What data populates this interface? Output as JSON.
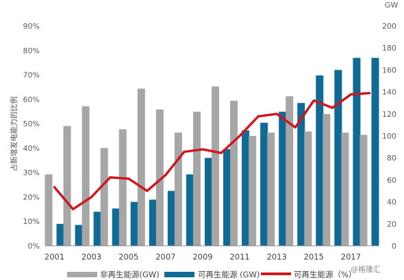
{
  "chart_data": {
    "type": "bar",
    "categories": [
      "2001",
      "2002",
      "2003",
      "2004",
      "2005",
      "2006",
      "2007",
      "2008",
      "2009",
      "2010",
      "2011",
      "2012",
      "2013",
      "2014",
      "2015",
      "2016",
      "2017",
      "2018"
    ],
    "x_tick_labels": [
      "2001",
      "2003",
      "2005",
      "2007",
      "2009",
      "2011",
      "2013",
      "2015",
      "2017"
    ],
    "series": [
      {
        "name": "非再生能源(GW)",
        "kind": "bar",
        "axis": "right",
        "color": "#a6a6a6",
        "values": [
          65,
          109,
          127,
          89,
          106,
          143,
          124,
          103,
          122,
          145,
          132,
          100,
          103,
          136,
          104,
          120,
          103,
          101
        ]
      },
      {
        "name": "可再生能源 (GW)",
        "kind": "bar",
        "axis": "right",
        "color": "#0f6a96",
        "values": [
          20,
          19,
          31,
          34,
          40,
          42,
          50,
          65,
          80,
          88,
          105,
          112,
          122,
          130,
          155,
          160,
          171,
          171
        ]
      },
      {
        "name": "可再生能源（%）",
        "kind": "line",
        "axis": "left",
        "color": "#d0161e",
        "values": [
          24,
          15,
          20,
          28,
          27.5,
          22.5,
          29,
          38.5,
          39.5,
          38,
          45,
          53,
          54,
          48.5,
          59.5,
          56.5,
          62,
          62.5
        ]
      }
    ],
    "left_axis": {
      "label": "占新增发电能力的比例",
      "ticks": [
        "0%",
        "10%",
        "20%",
        "30%",
        "40%",
        "50%",
        "60%",
        "70%",
        "80%",
        "90%"
      ],
      "range": [
        0,
        90
      ]
    },
    "right_axis": {
      "label": "GW",
      "ticks": [
        "0",
        "20",
        "40",
        "60",
        "80",
        "100",
        "120",
        "140",
        "160",
        "180",
        "200"
      ],
      "range": [
        0,
        200
      ]
    },
    "legend_placement": "bottom",
    "grid": false
  },
  "watermark": "@格隆汇"
}
